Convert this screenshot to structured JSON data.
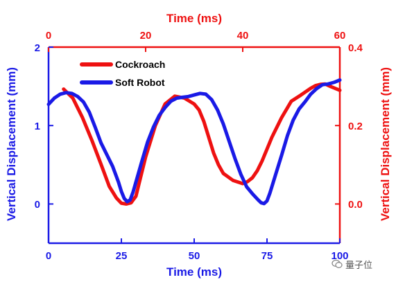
{
  "chart_data": {
    "type": "line",
    "colors": {
      "blue": "#1a1ae6",
      "red": "#ee1111"
    },
    "bottom_axis": {
      "label": "Time (ms)",
      "range": [
        0,
        100
      ],
      "ticks": [
        0,
        25,
        50,
        75,
        100
      ],
      "tick_labels": [
        "0",
        "25",
        "50",
        "75",
        "100"
      ]
    },
    "top_axis": {
      "label": "Time (ms)",
      "range": [
        0,
        60
      ],
      "ticks": [
        0,
        20,
        40,
        60
      ],
      "tick_labels": [
        "0",
        "20",
        "40",
        "60"
      ]
    },
    "left_axis": {
      "label": "Vertical Displacement (mm)",
      "range": [
        -0.5,
        2
      ],
      "ticks": [
        0,
        1,
        2
      ],
      "tick_labels": [
        "0",
        "1",
        "2"
      ]
    },
    "right_axis": {
      "label": "Vertical Displacement (mm)",
      "range": [
        -0.1,
        0.4
      ],
      "ticks": [
        0,
        0.2,
        0.4
      ],
      "tick_labels": [
        "0.0",
        "0.2",
        "0.4"
      ]
    },
    "legend": {
      "placement": "top-left",
      "entries": [
        "Cockroach",
        "Soft Robot"
      ]
    },
    "series": [
      {
        "name": "Cockroach",
        "color": "red",
        "axes": [
          "top",
          "right"
        ],
        "x": [
          3.1,
          5,
          7,
          9,
          11,
          12.5,
          14,
          15,
          16,
          17,
          18,
          19,
          20,
          22,
          24,
          26,
          28,
          30,
          31,
          32,
          33,
          34,
          35,
          36,
          38,
          40,
          41,
          42,
          43,
          44,
          45,
          46,
          48,
          50,
          52,
          54,
          55,
          56,
          57,
          58,
          59,
          60
        ],
        "y": [
          0.293,
          0.27,
          0.22,
          0.16,
          0.095,
          0.045,
          0.015,
          0.002,
          0.0,
          0.003,
          0.02,
          0.07,
          0.12,
          0.2,
          0.255,
          0.275,
          0.27,
          0.255,
          0.24,
          0.21,
          0.17,
          0.13,
          0.1,
          0.078,
          0.06,
          0.052,
          0.057,
          0.067,
          0.085,
          0.11,
          0.14,
          0.17,
          0.22,
          0.262,
          0.278,
          0.295,
          0.302,
          0.305,
          0.306,
          0.3,
          0.295,
          0.29
        ]
      },
      {
        "name": "Soft Robot",
        "color": "blue",
        "axes": [
          "bottom",
          "left"
        ],
        "x": [
          0,
          2,
          4,
          6,
          8,
          10,
          12,
          14,
          16,
          18,
          20,
          22,
          24,
          25,
          26,
          27,
          28,
          29,
          30,
          32,
          34,
          36,
          38,
          40,
          42,
          44,
          46,
          48,
          50,
          52,
          54,
          56,
          58,
          60,
          62,
          64,
          66,
          68,
          70,
          72,
          73,
          74,
          75,
          76,
          78,
          80,
          82,
          84,
          86,
          88,
          90,
          92,
          94,
          96,
          98,
          100
        ],
        "y": [
          1.27,
          1.35,
          1.4,
          1.42,
          1.41,
          1.37,
          1.3,
          1.17,
          0.98,
          0.78,
          0.63,
          0.48,
          0.28,
          0.16,
          0.07,
          0.03,
          0.05,
          0.15,
          0.28,
          0.54,
          0.79,
          0.98,
          1.13,
          1.23,
          1.31,
          1.35,
          1.36,
          1.37,
          1.39,
          1.41,
          1.4,
          1.33,
          1.2,
          1.02,
          0.8,
          0.58,
          0.38,
          0.22,
          0.13,
          0.05,
          0.015,
          0.005,
          0.04,
          0.14,
          0.38,
          0.62,
          0.87,
          1.07,
          1.21,
          1.3,
          1.4,
          1.47,
          1.52,
          1.53,
          1.55,
          1.58
        ]
      }
    ]
  },
  "watermark": {
    "text": "量子位",
    "icon": "wechat-bubble-icon"
  }
}
